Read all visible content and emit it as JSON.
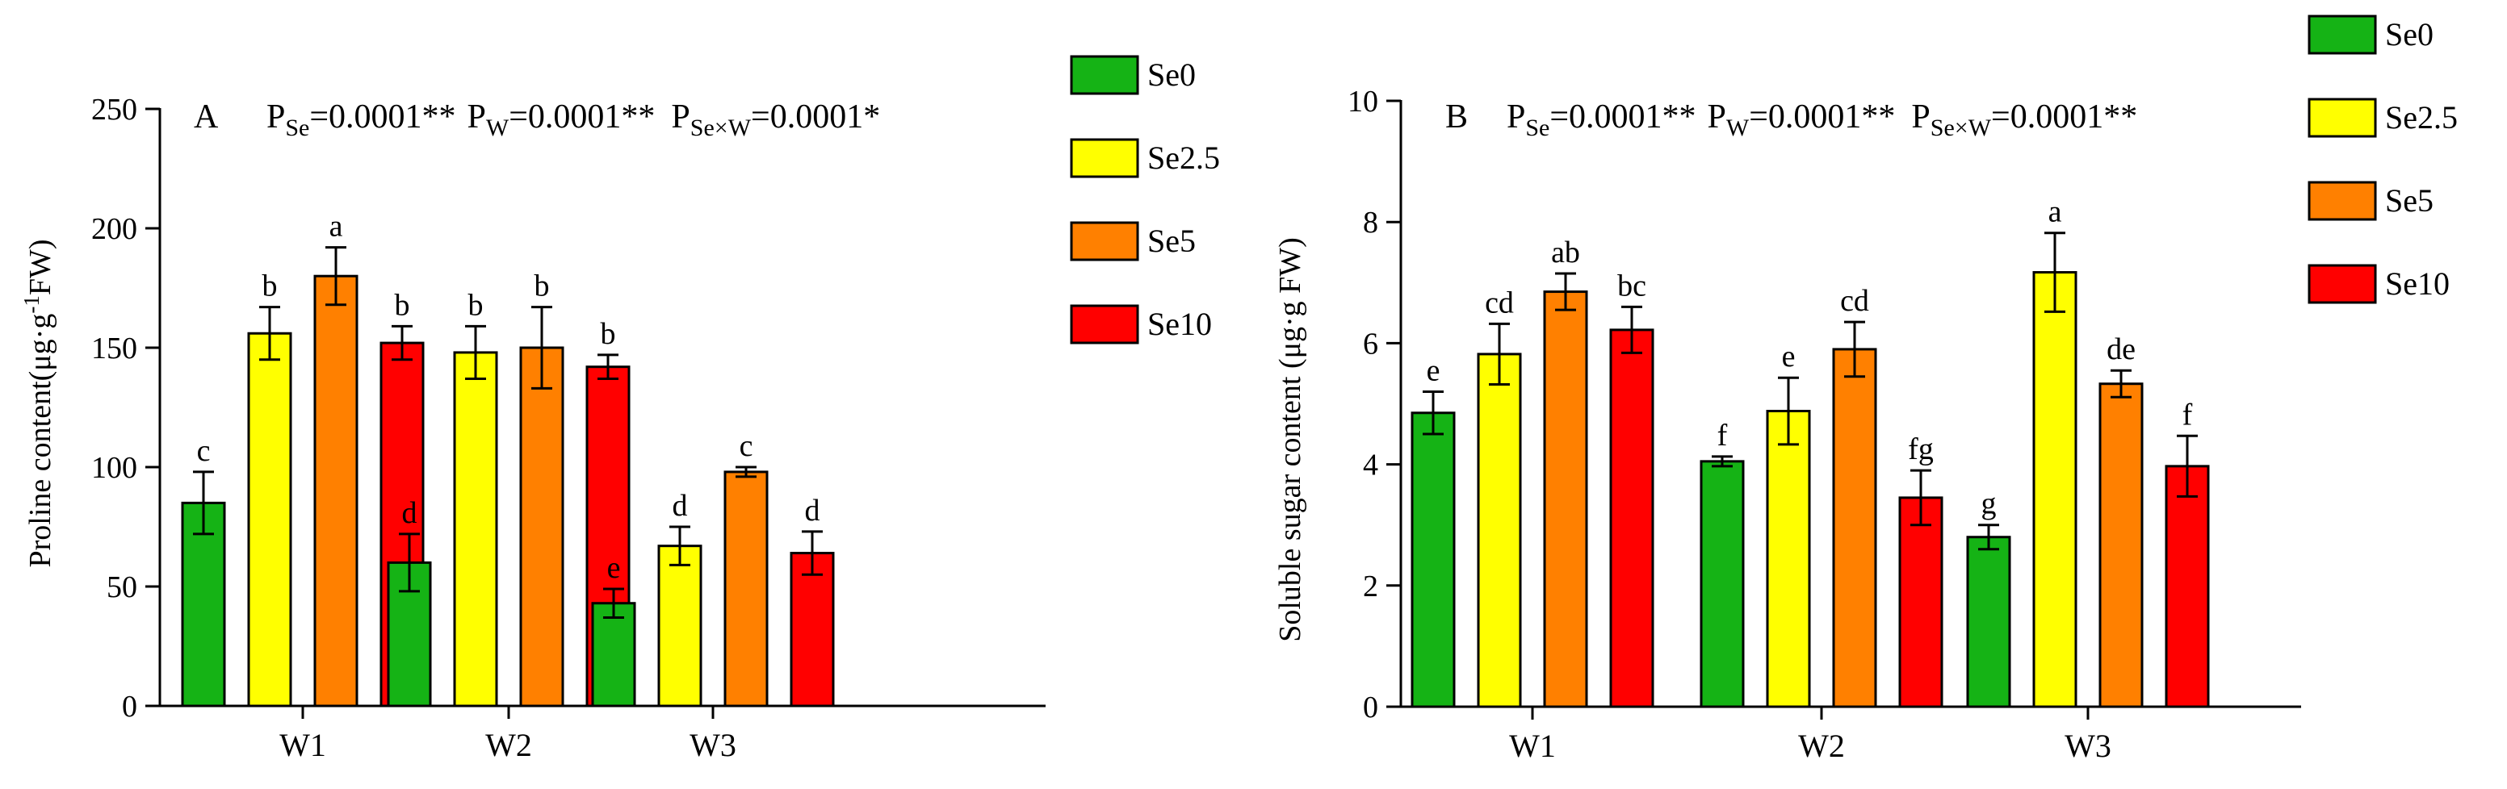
{
  "chart_data": [
    {
      "type": "bar",
      "panel_label": "A",
      "stats": {
        "se": {
          "p": "P",
          "sub": "Se",
          "val": "=0.0001**"
        },
        "w": {
          "p": "P",
          "sub": "W",
          "val": "=0.0001**"
        },
        "sexw": {
          "p": "P",
          "sub": "Se×W",
          "val": "=0.0001*"
        }
      },
      "ylabel": {
        "main": "Proline content(μg·g",
        "sup": "-1",
        "end": "FW)"
      },
      "ylim": [
        0,
        250
      ],
      "yticks": [
        "0",
        "50",
        "100",
        "150",
        "200",
        "250"
      ],
      "categories": [
        "W1",
        "W2",
        "W3"
      ],
      "series": [
        {
          "name": "Se0",
          "values": [
            85,
            60,
            43
          ],
          "errors": [
            13,
            12,
            6
          ],
          "letters": [
            "c",
            "d",
            "e"
          ]
        },
        {
          "name": "Se2.5",
          "values": [
            156,
            148,
            67
          ],
          "errors": [
            11,
            11,
            8
          ],
          "letters": [
            "b",
            "b",
            "d"
          ]
        },
        {
          "name": "Se5",
          "values": [
            180,
            150,
            98
          ],
          "errors": [
            12,
            17,
            2
          ],
          "letters": [
            "a",
            "b",
            "c"
          ]
        },
        {
          "name": "Se10",
          "values": [
            152,
            142,
            64
          ],
          "errors": [
            7,
            5,
            9
          ],
          "letters": [
            "b",
            "b",
            "d"
          ]
        }
      ]
    },
    {
      "type": "bar",
      "panel_label": "B",
      "stats": {
        "se": {
          "p": "P",
          "sub": "Se",
          "val": "=0.0001**"
        },
        "w": {
          "p": "P",
          "sub": "W",
          "val": "=0.0001**"
        },
        "sexw": {
          "p": "P",
          "sub": "Se×W",
          "val": "=0.0001**"
        }
      },
      "ylabel": {
        "main": "Soluble sugar content (μg·g FW)",
        "sup": "",
        "end": ""
      },
      "ylim": [
        0,
        10
      ],
      "yticks": [
        "0",
        "2",
        "4",
        "6",
        "8",
        "10"
      ],
      "categories": [
        "W1",
        "W2",
        "W3"
      ],
      "series": [
        {
          "name": "Se0",
          "values": [
            4.85,
            4.05,
            2.8
          ],
          "errors": [
            0.35,
            0.08,
            0.2
          ],
          "letters": [
            "e",
            "f",
            "g"
          ]
        },
        {
          "name": "Se2.5",
          "values": [
            5.82,
            4.88,
            7.17
          ],
          "errors": [
            0.5,
            0.55,
            0.65
          ],
          "letters": [
            "cd",
            "e",
            "a"
          ]
        },
        {
          "name": "Se5",
          "values": [
            6.85,
            5.9,
            5.33
          ],
          "errors": [
            0.3,
            0.45,
            0.22
          ],
          "letters": [
            "ab",
            "cd",
            "de"
          ]
        },
        {
          "name": "Se10",
          "values": [
            6.22,
            3.45,
            3.97
          ],
          "errors": [
            0.38,
            0.45,
            0.5
          ],
          "letters": [
            "bc",
            "fg",
            "f"
          ]
        }
      ]
    }
  ],
  "legend": [
    {
      "name": "Se0",
      "color": "#15b315"
    },
    {
      "name": "Se2.5",
      "color": "#ffff00"
    },
    {
      "name": "Se5",
      "color": "#ff8000"
    },
    {
      "name": "Se10",
      "color": "#ff0000"
    }
  ]
}
